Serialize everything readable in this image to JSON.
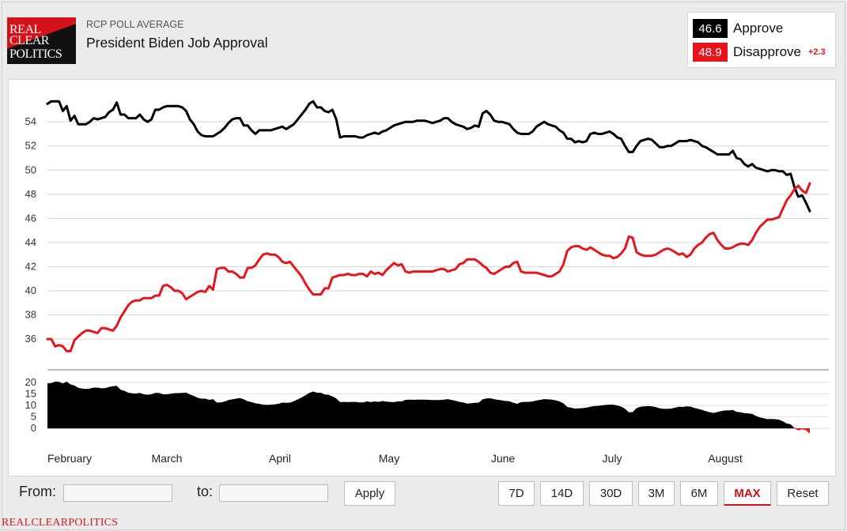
{
  "logo": {
    "line1": "REAL",
    "line2": "CLEAR",
    "line3": "POLITICS"
  },
  "header": {
    "kicker": "RCP POLL AVERAGE",
    "title": "President Biden Job Approval"
  },
  "legend": [
    {
      "value": "46.6",
      "name": "Approve",
      "color": "#000000",
      "change": ""
    },
    {
      "value": "48.9",
      "name": "Disapprove",
      "color": "#e8141b",
      "change": "+2.3"
    }
  ],
  "controls": {
    "from_label": "From:",
    "to_label": "to:",
    "apply_label": "Apply",
    "ranges": [
      "7D",
      "14D",
      "30D",
      "3M",
      "6M",
      "MAX"
    ],
    "active_range": "MAX",
    "reset_label": "Reset"
  },
  "footer": {
    "brand": "REALCLEARPOLITICS"
  },
  "chart_data": {
    "type": "line",
    "title": "President Biden Job Approval",
    "x_labels": [
      "February",
      "March",
      "April",
      "May",
      "June",
      "July",
      "August"
    ],
    "y_ticks": [
      36,
      38,
      40,
      42,
      44,
      46,
      48,
      50,
      52,
      54
    ],
    "ylim": [
      34.5,
      56.5
    ],
    "spread_ticks": [
      0,
      5,
      10,
      15,
      20
    ],
    "spread_ylim": [
      -2,
      22
    ],
    "grid": true,
    "series": [
      {
        "name": "Approve",
        "color": "#000000",
        "values": [
          55.5,
          55.7,
          55.7,
          55.7,
          54.9,
          55.3,
          54.1,
          54.5,
          53.8,
          53.8,
          53.8,
          54.0,
          54.3,
          54.2,
          54.3,
          54.4,
          54.8,
          55.0,
          55.6,
          54.6,
          54.6,
          54.3,
          54.3,
          54.3,
          54.6,
          54.2,
          54.0,
          54.2,
          55.0,
          55.0,
          55.2,
          55.3,
          55.3,
          55.3,
          55.3,
          55.2,
          54.9,
          54.2,
          53.8,
          53.2,
          52.9,
          52.8,
          52.8,
          52.8,
          53.0,
          53.2,
          53.5,
          53.9,
          54.2,
          54.3,
          54.3,
          53.7,
          53.7,
          53.3,
          53.0,
          53.3,
          53.3,
          53.3,
          53.3,
          53.4,
          53.5,
          53.6,
          53.4,
          53.6,
          53.8,
          54.2,
          54.6,
          55.0,
          55.5,
          55.7,
          55.2,
          55.2,
          54.9,
          54.8,
          55.0,
          54.2,
          52.7,
          52.8,
          52.8,
          52.8,
          52.8,
          52.7,
          52.7,
          52.9,
          53.0,
          53.1,
          53.0,
          53.2,
          53.3,
          53.5,
          53.7,
          53.8,
          53.9,
          54.0,
          54.0,
          54.0,
          54.1,
          54.1,
          54.1,
          54.0,
          53.9,
          54.0,
          54.1,
          54.3,
          54.3,
          54.0,
          53.8,
          53.7,
          53.6,
          53.4,
          53.5,
          53.7,
          53.6,
          54.7,
          54.9,
          54.6,
          54.1,
          54.0,
          54.0,
          53.9,
          53.8,
          53.4,
          53.1,
          53.0,
          53.0,
          53.0,
          53.2,
          53.6,
          53.8,
          54.0,
          53.8,
          53.7,
          53.6,
          53.3,
          53.1,
          52.6,
          52.6,
          52.3,
          52.4,
          52.3,
          52.4,
          53.0,
          53.1,
          53.0,
          53.0,
          53.1,
          53.2,
          53.0,
          52.7,
          52.6,
          52.0,
          51.5,
          51.5,
          52.0,
          52.4,
          52.5,
          52.6,
          52.5,
          52.2,
          51.9,
          51.9,
          52.0,
          52.0,
          52.2,
          52.4,
          52.4,
          52.4,
          52.5,
          52.4,
          52.3,
          52.0,
          51.9,
          51.7,
          51.5,
          51.3,
          51.3,
          51.3,
          51.3,
          51.6,
          51.0,
          50.9,
          50.5,
          50.3,
          50.5,
          50.2,
          50.1,
          50.0,
          49.9,
          50.0,
          50.0,
          49.9,
          49.9,
          49.6,
          49.7,
          48.6,
          47.8,
          47.9,
          47.3,
          46.6
        ]
      },
      {
        "name": "Disapprove",
        "color": "#e8141b",
        "values": [
          36.0,
          36.0,
          35.4,
          35.5,
          35.4,
          35.0,
          35.0,
          35.9,
          36.2,
          36.5,
          36.7,
          36.7,
          36.6,
          36.5,
          36.9,
          36.9,
          36.8,
          36.7,
          37.1,
          37.8,
          38.3,
          38.8,
          39.1,
          39.2,
          39.2,
          39.4,
          39.4,
          39.4,
          39.6,
          39.6,
          40.4,
          40.5,
          40.3,
          40.0,
          40.0,
          39.8,
          39.3,
          39.5,
          39.7,
          39.9,
          40.0,
          39.9,
          40.4,
          40.1,
          41.8,
          41.9,
          41.9,
          41.6,
          41.6,
          41.4,
          41.1,
          41.1,
          41.9,
          41.9,
          42.1,
          42.6,
          43.0,
          43.1,
          43.0,
          43.0,
          42.8,
          42.4,
          42.3,
          42.4,
          42.0,
          41.6,
          41.2,
          40.6,
          40.1,
          39.7,
          39.7,
          39.7,
          40.2,
          40.2,
          41.1,
          41.2,
          41.3,
          41.3,
          41.4,
          41.3,
          41.3,
          41.4,
          41.4,
          41.2,
          41.6,
          41.4,
          41.5,
          41.3,
          41.7,
          42.0,
          42.3,
          42.1,
          42.2,
          41.6,
          41.5,
          41.6,
          41.6,
          41.6,
          41.6,
          41.6,
          41.6,
          41.7,
          41.8,
          41.8,
          41.6,
          41.7,
          41.8,
          42.2,
          42.3,
          42.6,
          42.6,
          42.6,
          42.4,
          42.1,
          41.9,
          41.5,
          41.4,
          41.6,
          41.8,
          42.0,
          42.0,
          42.3,
          42.4,
          41.6,
          41.5,
          41.5,
          41.5,
          41.5,
          41.4,
          41.3,
          41.2,
          41.2,
          41.4,
          41.6,
          42.2,
          43.3,
          43.6,
          43.7,
          43.7,
          43.5,
          43.4,
          43.6,
          43.4,
          43.2,
          43.0,
          42.9,
          42.9,
          42.7,
          42.8,
          43.1,
          43.5,
          44.5,
          44.4,
          43.2,
          43.0,
          42.9,
          42.9,
          42.9,
          43.0,
          43.2,
          43.4,
          43.5,
          43.4,
          43.2,
          43.0,
          43.1,
          42.8,
          43.0,
          43.5,
          43.8,
          44.0,
          44.4,
          44.7,
          44.8,
          44.2,
          43.8,
          43.5,
          43.5,
          43.6,
          43.8,
          43.9,
          43.9,
          43.8,
          44.2,
          44.8,
          45.3,
          45.6,
          45.9,
          45.9,
          46.0,
          46.1,
          46.8,
          47.5,
          47.9,
          48.4,
          48.7,
          48.3,
          48.1,
          48.9
        ]
      }
    ]
  }
}
